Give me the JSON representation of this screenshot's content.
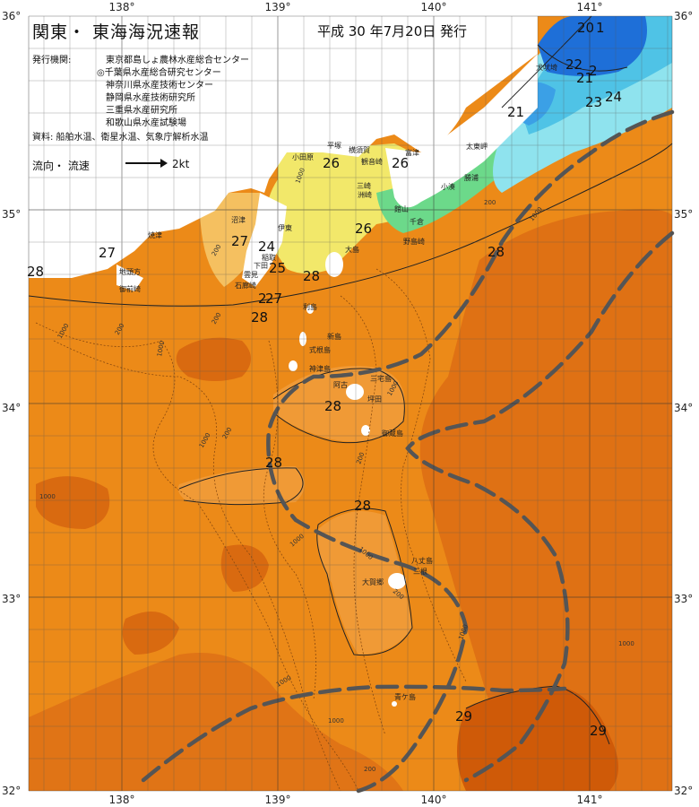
{
  "header": {
    "title": "関東・ 東海海況速報",
    "date": "平成 30 年7月20日 発行",
    "issuer_label": "発行機関:",
    "issuers": [
      "東京都島しょ農林水産総合センター",
      "◎千葉県水産総合研究センター",
      "神奈川県水産技術センター",
      "静岡県水産技術研究所",
      "三重県水産研究所",
      "和歌山県水産試験場"
    ],
    "sources": "資料: 船舶水温、衛星水温、気象庁解析水温",
    "legend_label": "流向・ 流速",
    "legend_value": "2kt"
  },
  "axes": {
    "lon_labels": [
      "138°",
      "139°",
      "140°",
      "141°"
    ],
    "lat_labels": [
      "36°",
      "35°",
      "34°",
      "33°",
      "32°"
    ]
  },
  "temps": [
    "20",
    "1",
    "22",
    "2",
    "21",
    "23",
    "24",
    "21",
    "26",
    "26",
    "26",
    "27",
    "27",
    "24",
    "25",
    "28",
    "28",
    "2",
    "27",
    "28",
    "28",
    "28",
    "28",
    "28",
    "29",
    "29"
  ],
  "places": [
    "犬吠埼",
    "太東岬",
    "勝浦",
    "小湊",
    "館山",
    "千倉",
    "野島崎",
    "洲崎",
    "三崎",
    "観音崎",
    "横須賀",
    "平塚",
    "小田原",
    "富津",
    "伊東",
    "大島",
    "稲取",
    "下田",
    "雲見",
    "石廊崎",
    "沼津",
    "焼津",
    "御前崎",
    "地頭方",
    "利島",
    "新島",
    "式根島",
    "神津島",
    "三宅島",
    "阿古",
    "坪田",
    "御蔵島",
    "八丈島",
    "三根",
    "大賀郷",
    "青ケ島"
  ],
  "depths": [
    "1000",
    "200",
    "1000",
    "1000",
    "200",
    "200",
    "1000",
    "200",
    "1000",
    "200",
    "1000",
    "1000",
    "1000",
    "200",
    "1000",
    "200",
    "1000",
    "1000",
    "1000",
    "200",
    "1000"
  ],
  "colors": {
    "sea_base": "#ec8a18",
    "sea_light": "#f2a244",
    "sea_dark": "#d96a10",
    "sea_darkest": "#cc5a08",
    "cold_blue": "#1e6fd8",
    "cold_cyan": "#4fc3e6",
    "cold_lightcyan": "#8fe3ee",
    "cold_green": "#6cd98a",
    "cool_yellow": "#f2e86a",
    "land": "#ffffff",
    "kuroshio_axis": "#555555"
  }
}
